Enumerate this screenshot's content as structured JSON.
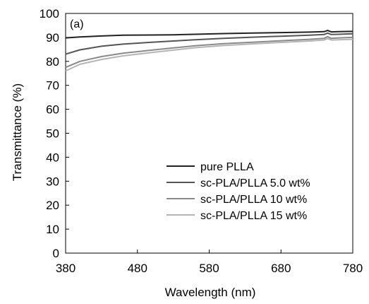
{
  "chart_data": {
    "type": "line",
    "panel_label": "(a)",
    "xlabel": "Wavelength (nm)",
    "ylabel": "Transmittance (%)",
    "xlim": [
      380,
      780
    ],
    "ylim": [
      0,
      100
    ],
    "xticks": [
      380,
      480,
      580,
      680,
      780
    ],
    "yticks": [
      0,
      10,
      20,
      30,
      40,
      50,
      60,
      70,
      80,
      90,
      100
    ],
    "grid": false,
    "legend_position": "lower-right",
    "series": [
      {
        "name": "pure PLLA",
        "color": "#222222",
        "x": [
          380,
          400,
          430,
          460,
          500,
          530,
          560,
          600,
          640,
          680,
          720,
          740,
          745,
          750,
          760,
          780
        ],
        "y": [
          89.8,
          90.2,
          90.6,
          90.9,
          91.0,
          91.1,
          91.3,
          91.6,
          91.8,
          92.0,
          92.2,
          92.4,
          92.9,
          92.3,
          92.4,
          92.5
        ]
      },
      {
        "name": "sc-PLA/PLLA 5.0 wt%",
        "color": "#555555",
        "x": [
          380,
          400,
          430,
          460,
          500,
          530,
          560,
          600,
          640,
          680,
          720,
          740,
          745,
          750,
          760,
          780
        ],
        "y": [
          83.0,
          84.8,
          86.3,
          87.2,
          88.0,
          88.5,
          89.0,
          89.6,
          90.1,
          90.5,
          90.9,
          91.2,
          91.8,
          91.2,
          91.3,
          91.5
        ]
      },
      {
        "name": "sc-PLA/PLLA 10 wt%",
        "color": "#8a8a8a",
        "x": [
          380,
          400,
          430,
          460,
          500,
          530,
          560,
          600,
          640,
          680,
          720,
          740,
          745,
          750,
          760,
          780
        ],
        "y": [
          77.5,
          80.0,
          82.0,
          83.4,
          84.7,
          85.6,
          86.5,
          87.4,
          88.0,
          88.6,
          89.2,
          89.6,
          90.3,
          89.6,
          89.8,
          90.0
        ]
      },
      {
        "name": "sc-PLA/PLLA 15 wt%",
        "color": "#b5b5b5",
        "x": [
          380,
          400,
          430,
          460,
          500,
          530,
          560,
          600,
          640,
          680,
          720,
          740,
          745,
          750,
          760,
          780
        ],
        "y": [
          76.0,
          78.8,
          80.8,
          82.3,
          83.7,
          84.7,
          85.7,
          86.6,
          87.3,
          87.9,
          88.5,
          88.9,
          89.5,
          88.9,
          89.0,
          89.2
        ]
      }
    ]
  }
}
